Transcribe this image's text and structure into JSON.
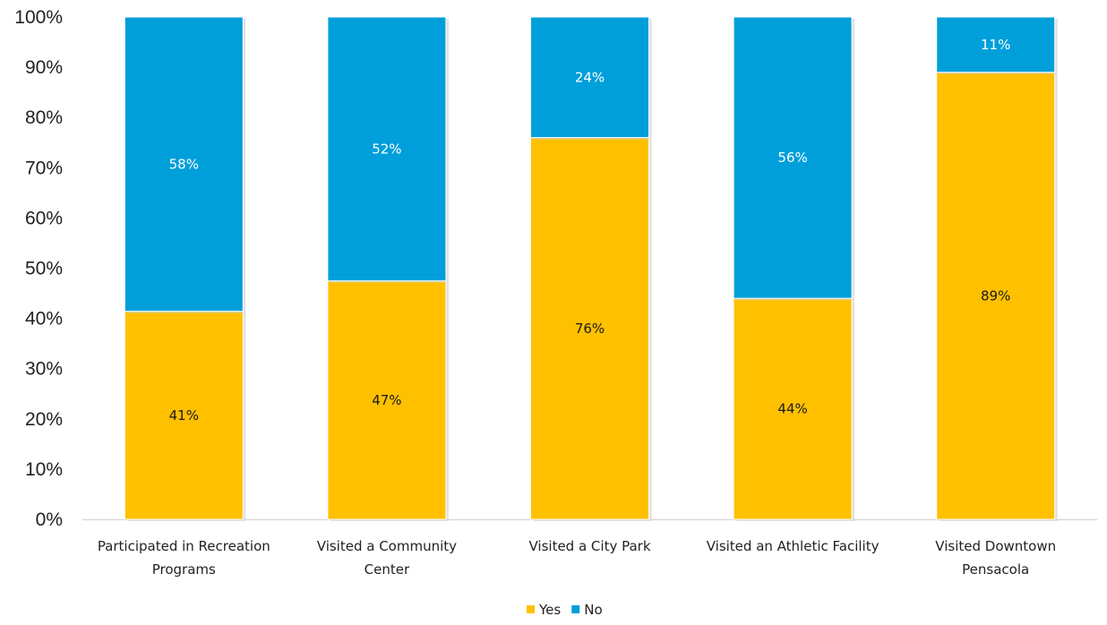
{
  "chart_data": {
    "type": "bar",
    "stacked": true,
    "percent_stacked": true,
    "categories": [
      [
        "Participated in Recreation",
        "Programs"
      ],
      [
        "Visited a Community",
        "Center"
      ],
      [
        "Visited a City Park"
      ],
      [
        "Visited an Athletic Facility"
      ],
      [
        "Visited Downtown",
        "Pensacola"
      ]
    ],
    "series": [
      {
        "name": "Yes",
        "color": "#FFC000",
        "label_color": "#1a1a1a",
        "values": [
          41,
          47,
          76,
          44,
          89
        ],
        "labels": [
          "41%",
          "47%",
          "76%",
          "44%",
          "89%"
        ]
      },
      {
        "name": "No",
        "color": "#009FDA",
        "label_color": "#ffffff",
        "values": [
          58,
          52,
          24,
          56,
          11
        ],
        "labels": [
          "58%",
          "52%",
          "24%",
          "56%",
          "11%"
        ]
      }
    ],
    "ylim": [
      0,
      100
    ],
    "yticks": [
      "0%",
      "10%",
      "20%",
      "30%",
      "40%",
      "50%",
      "60%",
      "70%",
      "80%",
      "90%",
      "100%"
    ],
    "grid": false,
    "legend": [
      "Yes",
      "No"
    ],
    "legend_position": "bottom-center",
    "title": "",
    "xlabel": "",
    "ylabel": ""
  }
}
